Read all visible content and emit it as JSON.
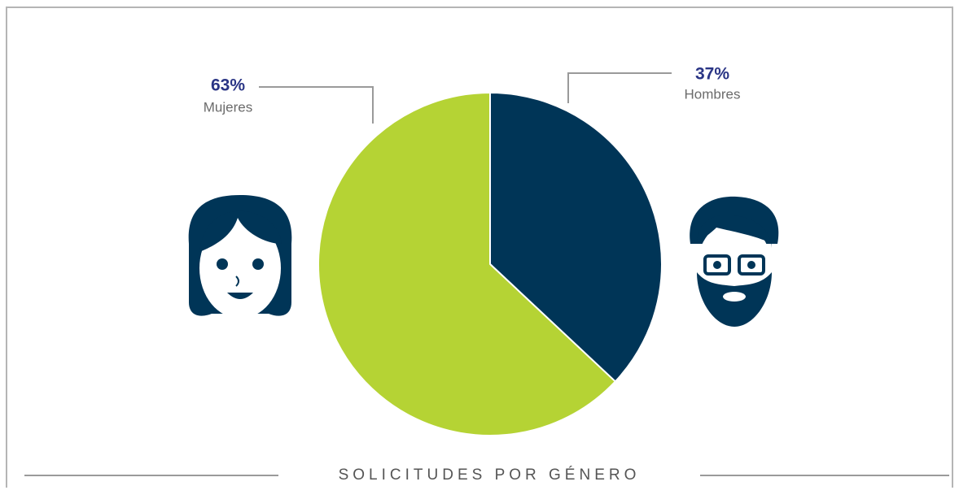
{
  "chart_data": {
    "type": "pie",
    "title": "SOLICITUDES POR GÉNERO",
    "categories": [
      "Hombres",
      "Mujeres"
    ],
    "values": [
      37,
      63
    ],
    "value_labels": [
      "37%",
      "63%"
    ],
    "colors": [
      "#003557",
      "#b5d334"
    ]
  }
}
